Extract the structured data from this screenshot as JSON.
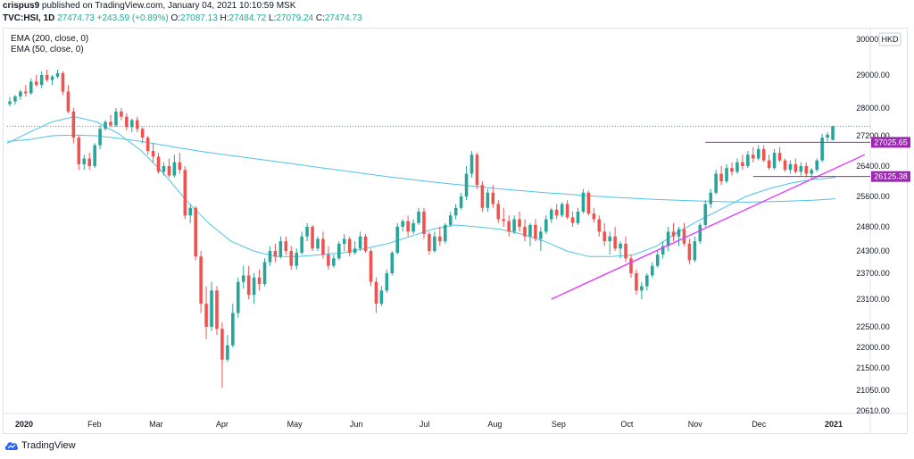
{
  "header": {
    "user": "crispus9",
    "published_text": "published on TradingView.com, January 04, 2021 10:10:59 MSK",
    "symbol": "TVC:HSI, 1D",
    "last": "27474.73",
    "change": "+243.59 (+0.89%)",
    "o_label": "O:",
    "o": "27087.13",
    "h_label": "H:",
    "h": "27484.72",
    "l_label": "L:",
    "l": "27079.24",
    "c_label": "C:",
    "c": "27474.73"
  },
  "legend": [
    "EMA (200, close, 0)",
    "EMA (50, close, 0)"
  ],
  "currency": "HKD",
  "footer": {
    "brand": "TradingView"
  },
  "colors": {
    "up": "#26a69a",
    "down": "#ef5350",
    "ema": "#4fc3e6",
    "trendline": "#e040fb",
    "level": "#9c27b0",
    "label_bg": "#9c27b0",
    "lastprice": "#26a69a"
  },
  "chart_data": {
    "type": "candlestick",
    "y_ticks": [
      20610,
      21050,
      21500,
      22000,
      22500,
      23100,
      23700,
      24300,
      24800,
      25600,
      26400,
      27200,
      28000,
      29000,
      30000
    ],
    "y_tick_labels": [
      "20610.00",
      "21050.00",
      "21500.00",
      "22000.00",
      "22500.00",
      "23100.00",
      "23700.00",
      "24300.00",
      "24800.00",
      "25600.00",
      "26400.00",
      "27200.00",
      "28000.00",
      "29000.00",
      "30000.00"
    ],
    "x_ticks": [
      {
        "label": "2020",
        "date": "2020-01-02"
      },
      {
        "label": "Feb",
        "date": "2020-02-03"
      },
      {
        "label": "Mar",
        "date": "2020-03-02"
      },
      {
        "label": "Apr",
        "date": "2020-04-01"
      },
      {
        "label": "May",
        "date": "2020-05-04"
      },
      {
        "label": "Jun",
        "date": "2020-06-01"
      },
      {
        "label": "Jul",
        "date": "2020-07-02"
      },
      {
        "label": "Aug",
        "date": "2020-08-03"
      },
      {
        "label": "Sep",
        "date": "2020-09-01"
      },
      {
        "label": "Oct",
        "date": "2020-10-02"
      },
      {
        "label": "Nov",
        "date": "2020-11-02"
      },
      {
        "label": "Dec",
        "date": "2020-12-01"
      },
      {
        "label": "2021",
        "date": "2021-01-04"
      }
    ],
    "candles": [
      {
        "o": 28120,
        "h": 28330,
        "l": 28050,
        "c": 28200
      },
      {
        "o": 28200,
        "h": 28400,
        "l": 28100,
        "c": 28350
      },
      {
        "o": 28350,
        "h": 28550,
        "l": 28250,
        "c": 28500
      },
      {
        "o": 28500,
        "h": 28700,
        "l": 28350,
        "c": 28450
      },
      {
        "o": 28450,
        "h": 28900,
        "l": 28400,
        "c": 28800
      },
      {
        "o": 28800,
        "h": 29000,
        "l": 28650,
        "c": 28700
      },
      {
        "o": 28700,
        "h": 29100,
        "l": 28600,
        "c": 29000
      },
      {
        "o": 29000,
        "h": 29150,
        "l": 28800,
        "c": 28850
      },
      {
        "o": 28850,
        "h": 29000,
        "l": 28700,
        "c": 28950
      },
      {
        "o": 28950,
        "h": 29150,
        "l": 28900,
        "c": 29050
      },
      {
        "o": 29050,
        "h": 29100,
        "l": 28400,
        "c": 28500
      },
      {
        "o": 28500,
        "h": 28700,
        "l": 27850,
        "c": 27900
      },
      {
        "o": 27900,
        "h": 28000,
        "l": 27000,
        "c": 27150
      },
      {
        "o": 27150,
        "h": 27200,
        "l": 26300,
        "c": 26450
      },
      {
        "o": 26450,
        "h": 26700,
        "l": 26300,
        "c": 26600
      },
      {
        "o": 26600,
        "h": 26750,
        "l": 26300,
        "c": 26400
      },
      {
        "o": 26400,
        "h": 27000,
        "l": 26350,
        "c": 26950
      },
      {
        "o": 26950,
        "h": 27500,
        "l": 26850,
        "c": 27400
      },
      {
        "o": 27400,
        "h": 27650,
        "l": 27350,
        "c": 27600
      },
      {
        "o": 27600,
        "h": 27800,
        "l": 27450,
        "c": 27500
      },
      {
        "o": 27500,
        "h": 28000,
        "l": 27450,
        "c": 27900
      },
      {
        "o": 27900,
        "h": 28000,
        "l": 27650,
        "c": 27750
      },
      {
        "o": 27750,
        "h": 27850,
        "l": 27350,
        "c": 27450
      },
      {
        "o": 27450,
        "h": 27700,
        "l": 27300,
        "c": 27650
      },
      {
        "o": 27650,
        "h": 27750,
        "l": 27300,
        "c": 27400
      },
      {
        "o": 27400,
        "h": 27450,
        "l": 27000,
        "c": 27150
      },
      {
        "o": 27150,
        "h": 27200,
        "l": 26700,
        "c": 26800
      },
      {
        "o": 26800,
        "h": 27000,
        "l": 26500,
        "c": 26650
      },
      {
        "o": 26650,
        "h": 26750,
        "l": 26200,
        "c": 26250
      },
      {
        "o": 26250,
        "h": 26500,
        "l": 26150,
        "c": 26400
      },
      {
        "o": 26400,
        "h": 26600,
        "l": 26100,
        "c": 26150
      },
      {
        "o": 26150,
        "h": 26700,
        "l": 26100,
        "c": 26500
      },
      {
        "o": 26500,
        "h": 26750,
        "l": 26200,
        "c": 26300
      },
      {
        "o": 26300,
        "h": 26400,
        "l": 25000,
        "c": 25100
      },
      {
        "o": 25100,
        "h": 25400,
        "l": 24900,
        "c": 25300
      },
      {
        "o": 25300,
        "h": 25350,
        "l": 24050,
        "c": 24150
      },
      {
        "o": 24150,
        "h": 24300,
        "l": 22800,
        "c": 23000
      },
      {
        "o": 23000,
        "h": 23400,
        "l": 22200,
        "c": 22500
      },
      {
        "o": 22500,
        "h": 23500,
        "l": 22400,
        "c": 23300
      },
      {
        "o": 23300,
        "h": 23400,
        "l": 22300,
        "c": 22450
      },
      {
        "o": 22450,
        "h": 22600,
        "l": 21100,
        "c": 21700
      },
      {
        "o": 21700,
        "h": 22300,
        "l": 21650,
        "c": 22050
      },
      {
        "o": 22050,
        "h": 23000,
        "l": 22000,
        "c": 22800
      },
      {
        "o": 22800,
        "h": 23600,
        "l": 22700,
        "c": 23500
      },
      {
        "o": 23500,
        "h": 23900,
        "l": 23350,
        "c": 23650
      },
      {
        "o": 23650,
        "h": 23900,
        "l": 23100,
        "c": 23200
      },
      {
        "o": 23200,
        "h": 23700,
        "l": 23000,
        "c": 23600
      },
      {
        "o": 23600,
        "h": 23800,
        "l": 23300,
        "c": 23450
      },
      {
        "o": 23450,
        "h": 24100,
        "l": 23400,
        "c": 24000
      },
      {
        "o": 24000,
        "h": 24400,
        "l": 23900,
        "c": 24300
      },
      {
        "o": 24300,
        "h": 24450,
        "l": 24000,
        "c": 24150
      },
      {
        "o": 24150,
        "h": 24600,
        "l": 24100,
        "c": 24500
      },
      {
        "o": 24500,
        "h": 24600,
        "l": 24200,
        "c": 24300
      },
      {
        "o": 24300,
        "h": 24400,
        "l": 23800,
        "c": 23900
      },
      {
        "o": 23900,
        "h": 24350,
        "l": 23800,
        "c": 24250
      },
      {
        "o": 24250,
        "h": 24700,
        "l": 24200,
        "c": 24600
      },
      {
        "o": 24600,
        "h": 24900,
        "l": 24500,
        "c": 24800
      },
      {
        "o": 24800,
        "h": 24850,
        "l": 24300,
        "c": 24350
      },
      {
        "o": 24350,
        "h": 24600,
        "l": 24300,
        "c": 24550
      },
      {
        "o": 24550,
        "h": 24700,
        "l": 24100,
        "c": 24200
      },
      {
        "o": 24200,
        "h": 24400,
        "l": 23800,
        "c": 23900
      },
      {
        "o": 23900,
        "h": 24200,
        "l": 23850,
        "c": 24100
      },
      {
        "o": 24100,
        "h": 24500,
        "l": 24050,
        "c": 24450
      },
      {
        "o": 24450,
        "h": 24650,
        "l": 24300,
        "c": 24550
      },
      {
        "o": 24550,
        "h": 24600,
        "l": 24150,
        "c": 24250
      },
      {
        "o": 24250,
        "h": 24500,
        "l": 24200,
        "c": 24350
      },
      {
        "o": 24350,
        "h": 24700,
        "l": 24300,
        "c": 24600
      },
      {
        "o": 24600,
        "h": 24650,
        "l": 24250,
        "c": 24300
      },
      {
        "o": 24300,
        "h": 24350,
        "l": 23400,
        "c": 23500
      },
      {
        "o": 23500,
        "h": 23600,
        "l": 22800,
        "c": 23000
      },
      {
        "o": 23000,
        "h": 23400,
        "l": 22950,
        "c": 23300
      },
      {
        "o": 23300,
        "h": 23800,
        "l": 23250,
        "c": 23700
      },
      {
        "o": 23700,
        "h": 24300,
        "l": 23650,
        "c": 24250
      },
      {
        "o": 24250,
        "h": 24900,
        "l": 24200,
        "c": 24800
      },
      {
        "o": 24800,
        "h": 25000,
        "l": 24700,
        "c": 24950
      },
      {
        "o": 24950,
        "h": 25100,
        "l": 24600,
        "c": 24700
      },
      {
        "o": 24700,
        "h": 25000,
        "l": 24650,
        "c": 24900
      },
      {
        "o": 24900,
        "h": 25300,
        "l": 24850,
        "c": 25200
      },
      {
        "o": 25200,
        "h": 25300,
        "l": 24550,
        "c": 24650
      },
      {
        "o": 24650,
        "h": 24700,
        "l": 24200,
        "c": 24300
      },
      {
        "o": 24300,
        "h": 24700,
        "l": 24250,
        "c": 24600
      },
      {
        "o": 24600,
        "h": 24800,
        "l": 24400,
        "c": 24500
      },
      {
        "o": 24500,
        "h": 24900,
        "l": 24450,
        "c": 24850
      },
      {
        "o": 24850,
        "h": 25200,
        "l": 24800,
        "c": 25100
      },
      {
        "o": 25100,
        "h": 25400,
        "l": 25000,
        "c": 25300
      },
      {
        "o": 25300,
        "h": 25700,
        "l": 25250,
        "c": 25600
      },
      {
        "o": 25600,
        "h": 26400,
        "l": 25500,
        "c": 26200
      },
      {
        "o": 26200,
        "h": 26800,
        "l": 26100,
        "c": 26700
      },
      {
        "o": 26700,
        "h": 26750,
        "l": 25800,
        "c": 25900
      },
      {
        "o": 25900,
        "h": 26000,
        "l": 25200,
        "c": 25300
      },
      {
        "o": 25300,
        "h": 25800,
        "l": 25200,
        "c": 25700
      },
      {
        "o": 25700,
        "h": 25900,
        "l": 25300,
        "c": 25400
      },
      {
        "o": 25400,
        "h": 25500,
        "l": 24900,
        "c": 25000
      },
      {
        "o": 25000,
        "h": 25300,
        "l": 24800,
        "c": 24950
      },
      {
        "o": 24950,
        "h": 25100,
        "l": 24600,
        "c": 24700
      },
      {
        "o": 24700,
        "h": 25100,
        "l": 24650,
        "c": 25000
      },
      {
        "o": 25000,
        "h": 25200,
        "l": 24700,
        "c": 24800
      },
      {
        "o": 24800,
        "h": 25000,
        "l": 24500,
        "c": 24600
      },
      {
        "o": 24600,
        "h": 24900,
        "l": 24400,
        "c": 24850
      },
      {
        "o": 24850,
        "h": 25000,
        "l": 24500,
        "c": 24550
      },
      {
        "o": 24550,
        "h": 24800,
        "l": 24300,
        "c": 24700
      },
      {
        "o": 24700,
        "h": 25100,
        "l": 24650,
        "c": 25000
      },
      {
        "o": 25000,
        "h": 25300,
        "l": 24900,
        "c": 25250
      },
      {
        "o": 25250,
        "h": 25400,
        "l": 25000,
        "c": 25100
      },
      {
        "o": 25100,
        "h": 25450,
        "l": 25050,
        "c": 25400
      },
      {
        "o": 25400,
        "h": 25500,
        "l": 25000,
        "c": 25050
      },
      {
        "o": 25050,
        "h": 25200,
        "l": 24800,
        "c": 24900
      },
      {
        "o": 24900,
        "h": 25300,
        "l": 24850,
        "c": 25200
      },
      {
        "o": 25200,
        "h": 25800,
        "l": 25150,
        "c": 25700
      },
      {
        "o": 25700,
        "h": 25750,
        "l": 25100,
        "c": 25150
      },
      {
        "o": 25150,
        "h": 25300,
        "l": 24900,
        "c": 25000
      },
      {
        "o": 25000,
        "h": 25100,
        "l": 24600,
        "c": 24700
      },
      {
        "o": 24700,
        "h": 24900,
        "l": 24400,
        "c": 24500
      },
      {
        "o": 24500,
        "h": 24700,
        "l": 24200,
        "c": 24600
      },
      {
        "o": 24600,
        "h": 24800,
        "l": 24300,
        "c": 24350
      },
      {
        "o": 24350,
        "h": 24500,
        "l": 24100,
        "c": 24450
      },
      {
        "o": 24450,
        "h": 24600,
        "l": 24000,
        "c": 24100
      },
      {
        "o": 24100,
        "h": 24200,
        "l": 23600,
        "c": 23700
      },
      {
        "o": 23700,
        "h": 23800,
        "l": 23200,
        "c": 23300
      },
      {
        "o": 23300,
        "h": 23500,
        "l": 23100,
        "c": 23400
      },
      {
        "o": 23400,
        "h": 23700,
        "l": 23300,
        "c": 23650
      },
      {
        "o": 23650,
        "h": 24000,
        "l": 23600,
        "c": 23900
      },
      {
        "o": 23900,
        "h": 24300,
        "l": 23850,
        "c": 24200
      },
      {
        "o": 24200,
        "h": 24500,
        "l": 24100,
        "c": 24400
      },
      {
        "o": 24400,
        "h": 24800,
        "l": 24300,
        "c": 24700
      },
      {
        "o": 24700,
        "h": 24900,
        "l": 24500,
        "c": 24600
      },
      {
        "o": 24600,
        "h": 24800,
        "l": 24400,
        "c": 24750
      },
      {
        "o": 24750,
        "h": 24900,
        "l": 24400,
        "c": 24450
      },
      {
        "o": 24450,
        "h": 24550,
        "l": 23950,
        "c": 24050
      },
      {
        "o": 24050,
        "h": 24600,
        "l": 24000,
        "c": 24500
      },
      {
        "o": 24500,
        "h": 24900,
        "l": 24450,
        "c": 24850
      },
      {
        "o": 24850,
        "h": 25500,
        "l": 24800,
        "c": 25400
      },
      {
        "o": 25400,
        "h": 25800,
        "l": 25300,
        "c": 25700
      },
      {
        "o": 25700,
        "h": 26300,
        "l": 25650,
        "c": 26200
      },
      {
        "o": 26200,
        "h": 26400,
        "l": 25900,
        "c": 26000
      },
      {
        "o": 26000,
        "h": 26450,
        "l": 25950,
        "c": 26350
      },
      {
        "o": 26350,
        "h": 26500,
        "l": 26150,
        "c": 26250
      },
      {
        "o": 26250,
        "h": 26600,
        "l": 26200,
        "c": 26500
      },
      {
        "o": 26500,
        "h": 26700,
        "l": 26300,
        "c": 26400
      },
      {
        "o": 26400,
        "h": 26800,
        "l": 26350,
        "c": 26700
      },
      {
        "o": 26700,
        "h": 26900,
        "l": 26500,
        "c": 26600
      },
      {
        "o": 26600,
        "h": 26950,
        "l": 26550,
        "c": 26850
      },
      {
        "o": 26850,
        "h": 26950,
        "l": 26500,
        "c": 26550
      },
      {
        "o": 26550,
        "h": 26700,
        "l": 26300,
        "c": 26350
      },
      {
        "o": 26350,
        "h": 26850,
        "l": 26300,
        "c": 26750
      },
      {
        "o": 26750,
        "h": 26900,
        "l": 26500,
        "c": 26550
      },
      {
        "o": 26550,
        "h": 26600,
        "l": 26250,
        "c": 26300
      },
      {
        "o": 26300,
        "h": 26550,
        "l": 26200,
        "c": 26450
      },
      {
        "o": 26450,
        "h": 26600,
        "l": 26200,
        "c": 26250
      },
      {
        "o": 26250,
        "h": 26500,
        "l": 26150,
        "c": 26400
      },
      {
        "o": 26400,
        "h": 26500,
        "l": 26100,
        "c": 26200
      },
      {
        "o": 26200,
        "h": 26350,
        "l": 26050,
        "c": 26300
      },
      {
        "o": 26300,
        "h": 26600,
        "l": 26250,
        "c": 26550
      },
      {
        "o": 26550,
        "h": 27250,
        "l": 26500,
        "c": 27150
      },
      {
        "o": 27150,
        "h": 27300,
        "l": 27050,
        "c": 27230
      },
      {
        "o": 27087.13,
        "h": 27484.72,
        "l": 27079.24,
        "c": 27474.73
      }
    ],
    "ema200": [
      27050,
      27100,
      27200,
      27220,
      27200,
      27130,
      27050,
      26950,
      26850,
      26760,
      26680,
      26600,
      26520,
      26440,
      26360,
      26280,
      26200,
      26120,
      26050,
      25980,
      25920,
      25860,
      25800,
      25750,
      25700,
      25660,
      25620,
      25580,
      25550,
      25520,
      25500,
      25480,
      25460,
      25450,
      25460,
      25480,
      25500,
      25540
    ],
    "ema50": [
      27000,
      27300,
      27600,
      27750,
      27600,
      27250,
      26800,
      26200,
      25500,
      24900,
      24500,
      24300,
      24150,
      24150,
      24200,
      24250,
      24350,
      24450,
      24600,
      24750,
      24850,
      24800,
      24750,
      24650,
      24500,
      24300,
      24150,
      24150,
      24200,
      24400,
      24700,
      25000,
      25300,
      25600,
      25800,
      25950,
      26050,
      26100
    ]
  },
  "annotations": {
    "level_upper": "27025.65",
    "level_lower": "26125.38"
  }
}
